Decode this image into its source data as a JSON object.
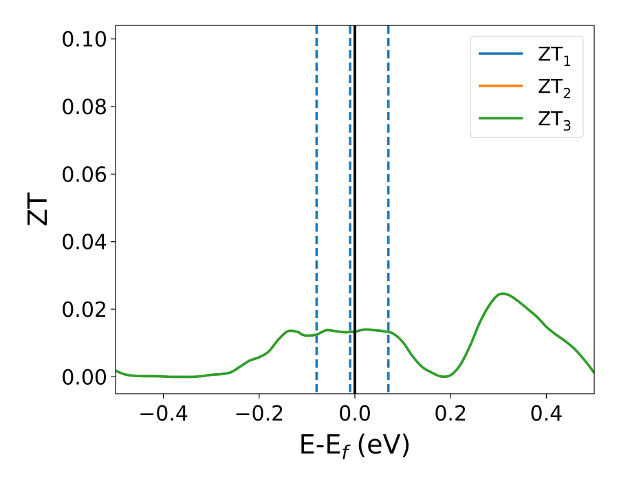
{
  "chart_data": {
    "type": "line",
    "xlabel": {
      "base": "E-E",
      "sub": "f",
      "suffix": " (eV)"
    },
    "ylabel": "ZT",
    "xlim": [
      -0.5,
      0.5
    ],
    "ylim": [
      -0.005,
      0.104
    ],
    "xticks": [
      -0.4,
      -0.2,
      0.0,
      0.2,
      0.4
    ],
    "xtick_labels": [
      "−0.4",
      "−0.2",
      "0.0",
      "0.2",
      "0.4"
    ],
    "yticks": [
      0.0,
      0.02,
      0.04,
      0.06,
      0.08,
      0.1
    ],
    "ytick_labels": [
      "0.00",
      "0.02",
      "0.04",
      "0.06",
      "0.08",
      "0.10"
    ],
    "grid": false,
    "legend_position": "top-right",
    "fermi_line": {
      "x": 0.0,
      "color": "#000000",
      "style": "solid"
    },
    "vlines": [
      {
        "x": -0.08,
        "color": "#1f77b4",
        "style": "dashed"
      },
      {
        "x": -0.01,
        "color": "#1f77b4",
        "style": "dashed"
      },
      {
        "x": 0.07,
        "color": "#1f77b4",
        "style": "dashed"
      }
    ],
    "x": [
      -0.5,
      -0.48,
      -0.46,
      -0.44,
      -0.42,
      -0.4,
      -0.38,
      -0.36,
      -0.34,
      -0.32,
      -0.3,
      -0.28,
      -0.26,
      -0.24,
      -0.22,
      -0.2,
      -0.18,
      -0.16,
      -0.14,
      -0.12,
      -0.11,
      -0.1,
      -0.08,
      -0.06,
      -0.04,
      -0.02,
      0.0,
      0.02,
      0.04,
      0.06,
      0.08,
      0.1,
      0.12,
      0.14,
      0.16,
      0.18,
      0.2,
      0.22,
      0.24,
      0.26,
      0.28,
      0.3,
      0.32,
      0.34,
      0.36,
      0.38,
      0.4,
      0.42,
      0.44,
      0.46,
      0.48,
      0.5
    ],
    "series": [
      {
        "name": "ZT",
        "sub": "1",
        "color": "#1f77b4",
        "values": [
          0.0018,
          0.0007,
          0.0003,
          0.0002,
          0.0002,
          0.0001,
          0.0,
          0.0,
          0.0,
          0.0002,
          0.0006,
          0.0008,
          0.0013,
          0.003,
          0.0048,
          0.0058,
          0.0075,
          0.011,
          0.0135,
          0.0133,
          0.0125,
          0.0122,
          0.0125,
          0.0138,
          0.0135,
          0.0132,
          0.0134,
          0.014,
          0.0138,
          0.0135,
          0.0128,
          0.0103,
          0.0062,
          0.003,
          0.0013,
          0.0001,
          0.0005,
          0.0035,
          0.009,
          0.0158,
          0.021,
          0.0243,
          0.0243,
          0.0225,
          0.0202,
          0.0178,
          0.0148,
          0.0125,
          0.0105,
          0.0081,
          0.0049,
          0.0012
        ]
      },
      {
        "name": "ZT",
        "sub": "2",
        "color": "#ff7f0e",
        "values": [
          0.0018,
          0.0007,
          0.0003,
          0.0002,
          0.0002,
          0.0001,
          0.0,
          0.0,
          0.0,
          0.0002,
          0.0006,
          0.0008,
          0.0013,
          0.003,
          0.0048,
          0.0058,
          0.0075,
          0.011,
          0.0135,
          0.0133,
          0.0125,
          0.0122,
          0.0125,
          0.0138,
          0.0135,
          0.0132,
          0.0134,
          0.014,
          0.0138,
          0.0135,
          0.0128,
          0.0103,
          0.0062,
          0.003,
          0.0013,
          0.0001,
          0.0005,
          0.0035,
          0.009,
          0.0158,
          0.021,
          0.0243,
          0.0243,
          0.0225,
          0.0202,
          0.0178,
          0.0148,
          0.0125,
          0.0105,
          0.0081,
          0.0049,
          0.0012
        ]
      },
      {
        "name": "ZT",
        "sub": "3",
        "color": "#2ca02c",
        "values": [
          0.0018,
          0.0007,
          0.0003,
          0.0002,
          0.0002,
          0.0001,
          0.0,
          0.0,
          0.0,
          0.0002,
          0.0006,
          0.0008,
          0.0013,
          0.003,
          0.0048,
          0.0058,
          0.0075,
          0.011,
          0.0135,
          0.0133,
          0.0125,
          0.0122,
          0.0125,
          0.0138,
          0.0135,
          0.0132,
          0.0134,
          0.014,
          0.0138,
          0.0135,
          0.0128,
          0.0103,
          0.0062,
          0.003,
          0.0013,
          0.0001,
          0.0005,
          0.0035,
          0.009,
          0.0158,
          0.021,
          0.0243,
          0.0243,
          0.0225,
          0.0202,
          0.0178,
          0.0148,
          0.0125,
          0.0105,
          0.0081,
          0.0049,
          0.0012
        ]
      }
    ]
  }
}
